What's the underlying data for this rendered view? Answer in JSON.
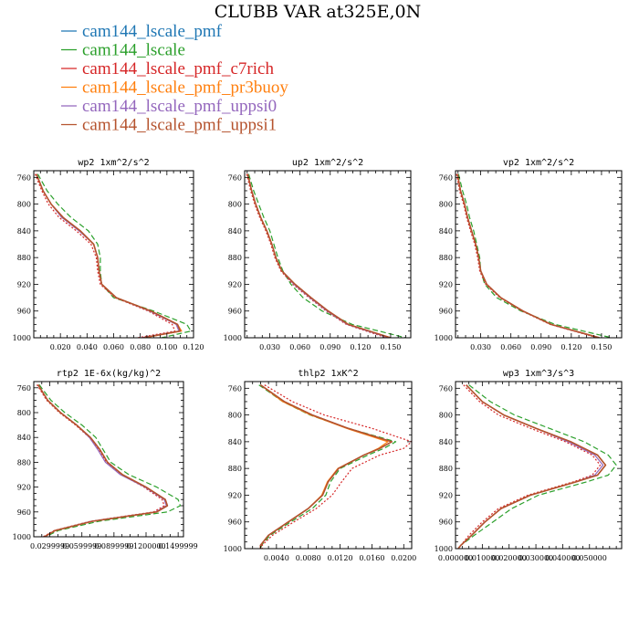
{
  "figure": {
    "title": "CLUBB VAR at325E,0N",
    "legend": [
      {
        "label": "cam144_lscale_pmf",
        "color": "#1f77b4"
      },
      {
        "label": "cam144_lscale",
        "color": "#2ca02c"
      },
      {
        "label": "cam144_lscale_pmf_c7rich",
        "color": "#d62728"
      },
      {
        "label": "cam144_lscale_pmf_pr3buoy",
        "color": "#ff7f0e"
      },
      {
        "label": "cam144_lscale_pmf_uppsi0",
        "color": "#9467bd"
      },
      {
        "label": "cam144_lscale_pmf_uppsi1",
        "color": "#b5532e"
      }
    ]
  },
  "chart_data": [
    {
      "type": "line",
      "title": "wp2  1xm^2/s^2",
      "xlim": [
        0,
        0.12
      ],
      "ylim": [
        1000,
        750
      ],
      "xticks": [
        "0.020",
        "0.040",
        "0.060",
        "0.080",
        "0.100",
        "0.120"
      ],
      "xtick_values": [
        0.02,
        0.04,
        0.06,
        0.08,
        0.1,
        0.12
      ],
      "yticks": [
        "760",
        "800",
        "840",
        "880",
        "920",
        "960",
        "1000"
      ],
      "ytick_values": [
        760,
        800,
        840,
        880,
        920,
        960,
        1000
      ],
      "y": [
        755,
        780,
        800,
        820,
        840,
        860,
        880,
        900,
        920,
        940,
        960,
        980,
        990,
        1000
      ],
      "series": [
        {
          "x": [
            0.002,
            0.007,
            0.013,
            0.022,
            0.035,
            0.045,
            0.048,
            0.049,
            0.051,
            0.062,
            0.088,
            0.108,
            0.11,
            0.082
          ]
        },
        {
          "x": [
            0.003,
            0.01,
            0.018,
            0.028,
            0.041,
            0.048,
            0.05,
            0.05,
            0.051,
            0.06,
            0.09,
            0.115,
            0.118,
            0.096
          ]
        },
        {
          "x": [
            0.001,
            0.006,
            0.011,
            0.019,
            0.032,
            0.043,
            0.047,
            0.048,
            0.05,
            0.061,
            0.086,
            0.104,
            0.106,
            0.078
          ]
        },
        {
          "x": [
            0.002,
            0.007,
            0.013,
            0.022,
            0.035,
            0.045,
            0.048,
            0.049,
            0.051,
            0.062,
            0.088,
            0.108,
            0.111,
            0.083
          ]
        },
        {
          "x": [
            0.002,
            0.007,
            0.013,
            0.021,
            0.034,
            0.045,
            0.048,
            0.049,
            0.051,
            0.062,
            0.087,
            0.107,
            0.109,
            0.081
          ]
        },
        {
          "x": [
            0.002,
            0.007,
            0.013,
            0.022,
            0.035,
            0.045,
            0.048,
            0.049,
            0.051,
            0.062,
            0.088,
            0.108,
            0.11,
            0.082
          ]
        }
      ]
    },
    {
      "type": "line",
      "title": "up2  1xm^2/s^2",
      "xlim": [
        0.005,
        0.17
      ],
      "ylim": [
        1000,
        750
      ],
      "xticks": [
        "0.030",
        "0.060",
        "0.090",
        "0.120",
        "0.150"
      ],
      "xtick_values": [
        0.03,
        0.06,
        0.09,
        0.12,
        0.15
      ],
      "yticks": [
        "760",
        "800",
        "840",
        "880",
        "920",
        "960",
        "1000"
      ],
      "ytick_values": [
        760,
        800,
        840,
        880,
        920,
        960,
        1000
      ],
      "y": [
        755,
        780,
        800,
        820,
        840,
        860,
        880,
        900,
        920,
        940,
        960,
        980,
        1000
      ],
      "series": [
        {
          "x": [
            0.008,
            0.012,
            0.016,
            0.021,
            0.027,
            0.032,
            0.036,
            0.042,
            0.055,
            0.071,
            0.088,
            0.108,
            0.15
          ]
        },
        {
          "x": [
            0.009,
            0.014,
            0.019,
            0.024,
            0.03,
            0.034,
            0.038,
            0.043,
            0.051,
            0.063,
            0.082,
            0.112,
            0.165
          ]
        },
        {
          "x": [
            0.007,
            0.011,
            0.015,
            0.02,
            0.026,
            0.031,
            0.035,
            0.041,
            0.053,
            0.069,
            0.086,
            0.106,
            0.146
          ]
        },
        {
          "x": [
            0.008,
            0.012,
            0.016,
            0.021,
            0.027,
            0.032,
            0.036,
            0.042,
            0.055,
            0.071,
            0.088,
            0.108,
            0.15
          ]
        },
        {
          "x": [
            0.008,
            0.012,
            0.016,
            0.021,
            0.027,
            0.032,
            0.036,
            0.042,
            0.054,
            0.07,
            0.087,
            0.107,
            0.148
          ]
        },
        {
          "x": [
            0.008,
            0.012,
            0.016,
            0.021,
            0.027,
            0.032,
            0.036,
            0.042,
            0.055,
            0.071,
            0.088,
            0.108,
            0.15
          ]
        }
      ]
    },
    {
      "type": "line",
      "title": "vp2  1xm^2/s^2",
      "xlim": [
        0.005,
        0.17
      ],
      "ylim": [
        1000,
        750
      ],
      "xticks": [
        "0.030",
        "0.060",
        "0.090",
        "0.120",
        "0.150"
      ],
      "xtick_values": [
        0.03,
        0.06,
        0.09,
        0.12,
        0.15
      ],
      "yticks": [
        "760",
        "800",
        "840",
        "880",
        "920",
        "960",
        "1000"
      ],
      "ytick_values": [
        760,
        800,
        840,
        880,
        920,
        960,
        1000
      ],
      "y": [
        755,
        780,
        800,
        820,
        840,
        860,
        880,
        900,
        920,
        940,
        960,
        980,
        1000
      ],
      "series": [
        {
          "x": [
            0.007,
            0.01,
            0.014,
            0.017,
            0.021,
            0.025,
            0.028,
            0.03,
            0.036,
            0.05,
            0.072,
            0.1,
            0.148
          ]
        },
        {
          "x": [
            0.008,
            0.012,
            0.016,
            0.019,
            0.023,
            0.026,
            0.029,
            0.03,
            0.034,
            0.046,
            0.07,
            0.104,
            0.16
          ]
        },
        {
          "x": [
            0.006,
            0.009,
            0.013,
            0.016,
            0.02,
            0.024,
            0.027,
            0.029,
            0.035,
            0.049,
            0.071,
            0.099,
            0.146
          ]
        },
        {
          "x": [
            0.007,
            0.01,
            0.014,
            0.017,
            0.021,
            0.025,
            0.028,
            0.03,
            0.036,
            0.05,
            0.072,
            0.1,
            0.148
          ]
        },
        {
          "x": [
            0.007,
            0.01,
            0.014,
            0.017,
            0.021,
            0.025,
            0.028,
            0.03,
            0.036,
            0.05,
            0.072,
            0.1,
            0.147
          ]
        },
        {
          "x": [
            0.007,
            0.01,
            0.014,
            0.017,
            0.021,
            0.025,
            0.028,
            0.03,
            0.036,
            0.05,
            0.072,
            0.1,
            0.148
          ]
        }
      ]
    },
    {
      "type": "line",
      "title": "rtp2  1E-6x(kg/kg)^2",
      "xlim": [
        0.015,
        0.155
      ],
      "ylim": [
        1000,
        750
      ],
      "xticks": [
        "0.0299999",
        "0.0599999",
        "0.0899999",
        "0.1200000",
        "0.1499999"
      ],
      "xtick_values": [
        0.03,
        0.06,
        0.09,
        0.12,
        0.15
      ],
      "yticks": [
        "760",
        "800",
        "840",
        "880",
        "920",
        "960",
        "1000"
      ],
      "ytick_values": [
        760,
        800,
        840,
        880,
        920,
        960,
        1000
      ],
      "y": [
        755,
        780,
        800,
        820,
        840,
        860,
        880,
        900,
        920,
        940,
        950,
        960,
        975,
        990,
        1000
      ],
      "series": [
        {
          "x": [
            0.019,
            0.028,
            0.04,
            0.055,
            0.068,
            0.077,
            0.084,
            0.098,
            0.12,
            0.138,
            0.14,
            0.13,
            0.07,
            0.035,
            0.025
          ]
        },
        {
          "x": [
            0.02,
            0.031,
            0.044,
            0.06,
            0.073,
            0.08,
            0.087,
            0.104,
            0.13,
            0.15,
            0.152,
            0.14,
            0.076,
            0.038,
            0.026
          ]
        },
        {
          "x": [
            0.018,
            0.027,
            0.039,
            0.054,
            0.067,
            0.076,
            0.083,
            0.097,
            0.118,
            0.135,
            0.137,
            0.127,
            0.068,
            0.034,
            0.024
          ]
        },
        {
          "x": [
            0.019,
            0.028,
            0.04,
            0.055,
            0.068,
            0.077,
            0.084,
            0.098,
            0.12,
            0.138,
            0.14,
            0.13,
            0.07,
            0.035,
            0.025
          ]
        },
        {
          "x": [
            0.019,
            0.028,
            0.04,
            0.055,
            0.067,
            0.075,
            0.082,
            0.096,
            0.119,
            0.137,
            0.139,
            0.129,
            0.069,
            0.035,
            0.025
          ]
        },
        {
          "x": [
            0.019,
            0.028,
            0.04,
            0.055,
            0.068,
            0.077,
            0.084,
            0.098,
            0.12,
            0.138,
            0.14,
            0.13,
            0.07,
            0.035,
            0.025
          ]
        }
      ]
    },
    {
      "type": "line",
      "title": "thlp2  1xK^2",
      "xlim": [
        0,
        0.021
      ],
      "ylim": [
        1000,
        750
      ],
      "xticks": [
        "0.0040",
        "0.0080",
        "0.0120",
        "0.0160",
        "0.0200"
      ],
      "xtick_values": [
        0.004,
        0.008,
        0.012,
        0.016,
        0.02
      ],
      "yticks": [
        "760",
        "800",
        "840",
        "880",
        "920",
        "960",
        "1000"
      ],
      "ytick_values": [
        760,
        800,
        840,
        880,
        920,
        960,
        1000
      ],
      "y": [
        755,
        780,
        800,
        820,
        840,
        850,
        860,
        880,
        900,
        920,
        940,
        960,
        980,
        995,
        1000
      ],
      "series": [
        {
          "x": [
            0.002,
            0.005,
            0.0085,
            0.013,
            0.0185,
            0.017,
            0.015,
            0.0118,
            0.0105,
            0.0098,
            0.008,
            0.0055,
            0.003,
            0.002,
            0.002
          ]
        },
        {
          "x": [
            0.0018,
            0.0048,
            0.0082,
            0.013,
            0.019,
            0.0175,
            0.0155,
            0.012,
            0.0108,
            0.0102,
            0.0085,
            0.0058,
            0.0032,
            0.0021,
            0.0021
          ]
        },
        {
          "x": [
            0.0025,
            0.006,
            0.01,
            0.016,
            0.021,
            0.02,
            0.017,
            0.0135,
            0.0122,
            0.011,
            0.009,
            0.0062,
            0.0035,
            0.0022,
            0.0022
          ]
        },
        {
          "x": [
            0.002,
            0.0048,
            0.0083,
            0.0128,
            0.018,
            0.0168,
            0.015,
            0.0117,
            0.0104,
            0.0097,
            0.008,
            0.0055,
            0.003,
            0.002,
            0.002
          ]
        },
        {
          "x": [
            0.002,
            0.005,
            0.0085,
            0.013,
            0.0185,
            0.017,
            0.015,
            0.0118,
            0.0105,
            0.0098,
            0.008,
            0.0055,
            0.003,
            0.002,
            0.002
          ]
        },
        {
          "x": [
            0.002,
            0.005,
            0.0085,
            0.013,
            0.0185,
            0.017,
            0.015,
            0.0118,
            0.0105,
            0.0098,
            0.008,
            0.0055,
            0.003,
            0.002,
            0.002
          ]
        }
      ]
    },
    {
      "type": "line",
      "title": "wp3  1xm^3/s^3",
      "xlim": [
        0,
        0.062
      ],
      "ylim": [
        1000,
        750
      ],
      "xticks": [
        "0.000000",
        "0.010000",
        "0.020000",
        "0.030000",
        "0.040000",
        "0.050000"
      ],
      "xtick_values": [
        0,
        0.01,
        0.02,
        0.03,
        0.04,
        0.05
      ],
      "yticks": [
        "760",
        "800",
        "840",
        "880",
        "920",
        "960",
        "1000"
      ],
      "ytick_values": [
        760,
        800,
        840,
        880,
        920,
        960,
        1000
      ],
      "y": [
        755,
        780,
        800,
        820,
        840,
        860,
        875,
        890,
        900,
        920,
        940,
        960,
        980,
        995,
        1000
      ],
      "series": [
        {
          "x": [
            0.004,
            0.01,
            0.018,
            0.03,
            0.043,
            0.053,
            0.056,
            0.053,
            0.045,
            0.028,
            0.017,
            0.011,
            0.006,
            0.002,
            0.001
          ]
        },
        {
          "x": [
            0.005,
            0.013,
            0.022,
            0.035,
            0.048,
            0.057,
            0.06,
            0.057,
            0.049,
            0.031,
            0.021,
            0.014,
            0.007,
            0.002,
            0.001
          ]
        },
        {
          "x": [
            0.003,
            0.009,
            0.016,
            0.028,
            0.041,
            0.051,
            0.054,
            0.051,
            0.044,
            0.027,
            0.016,
            0.01,
            0.005,
            0.002,
            0.001
          ]
        },
        {
          "x": [
            0.004,
            0.01,
            0.018,
            0.03,
            0.043,
            0.053,
            0.056,
            0.053,
            0.045,
            0.028,
            0.017,
            0.011,
            0.006,
            0.002,
            0.001
          ]
        },
        {
          "x": [
            0.004,
            0.01,
            0.018,
            0.03,
            0.042,
            0.052,
            0.055,
            0.052,
            0.045,
            0.028,
            0.017,
            0.011,
            0.006,
            0.002,
            0.001
          ]
        },
        {
          "x": [
            0.004,
            0.01,
            0.018,
            0.03,
            0.043,
            0.053,
            0.056,
            0.053,
            0.045,
            0.028,
            0.017,
            0.011,
            0.006,
            0.002,
            0.001
          ]
        }
      ]
    }
  ]
}
